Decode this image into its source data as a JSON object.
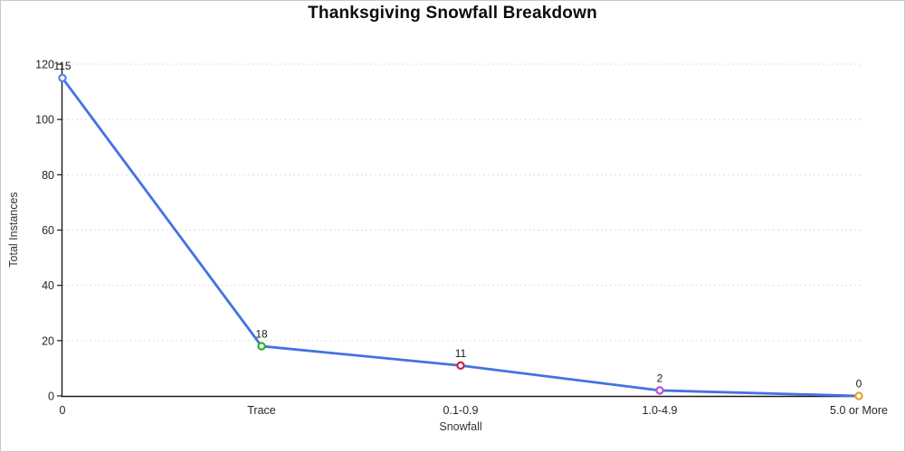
{
  "chart_data": {
    "type": "line",
    "title": "Thanksgiving Snowfall Breakdown",
    "xlabel": "Snowfall",
    "ylabel": "Total Instances",
    "categories": [
      "0",
      "Trace",
      "0.1-0.9",
      "1.0-4.9",
      "5.0 or More"
    ],
    "values": [
      115,
      18,
      11,
      2,
      0
    ],
    "data_labels": [
      "115",
      "18",
      "11",
      "2",
      "0"
    ],
    "yticks": [
      0,
      20,
      40,
      60,
      80,
      100,
      120
    ],
    "ylim": [
      0,
      120
    ],
    "grid": "horizontal-dashed",
    "legend": "none",
    "line_color": "#4472e3",
    "marker_colors": [
      "#587eea",
      "#2db22d",
      "#cc2244",
      "#bb55cc",
      "#eea32e"
    ],
    "gridline_color": "#dcdcdc",
    "axis_color": "#1a1a1a"
  }
}
